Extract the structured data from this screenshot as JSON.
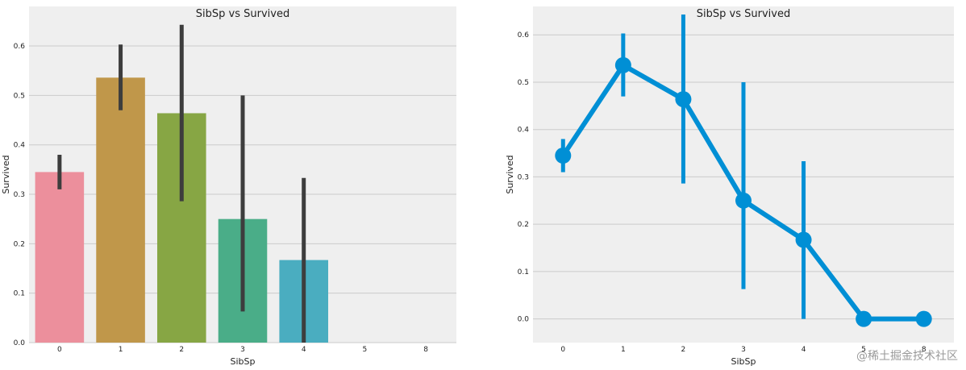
{
  "watermark": "@稀土掘金技术社区",
  "chart_data": [
    {
      "type": "bar",
      "title": "SibSp vs Survived",
      "xlabel": "SibSp",
      "ylabel": "Survived",
      "categories": [
        "0",
        "1",
        "2",
        "3",
        "4",
        "5",
        "8"
      ],
      "values": [
        0.345,
        0.536,
        0.464,
        0.25,
        0.167,
        0.0,
        0.0
      ],
      "ci_low": [
        0.31,
        0.47,
        0.286,
        0.063,
        0.0,
        0.0,
        0.0
      ],
      "ci_high": [
        0.38,
        0.603,
        0.643,
        0.5,
        0.333,
        0.0,
        0.0
      ],
      "colors": [
        "#ec8f9c",
        "#c0974a",
        "#87a644",
        "#4aad88",
        "#4aadc0",
        "#7aa3d4",
        "#c391d4"
      ],
      "errorbar_color": "#3d3d3d",
      "ylim": [
        0,
        0.68
      ],
      "yticks": [
        "0.0",
        "0.1",
        "0.2",
        "0.3",
        "0.4",
        "0.5",
        "0.6"
      ],
      "grid": true,
      "background": "#efefef"
    },
    {
      "type": "line",
      "title": "SibSp vs Survived",
      "xlabel": "SibSp",
      "ylabel": "Survived",
      "categories": [
        "0",
        "1",
        "2",
        "3",
        "4",
        "5",
        "8"
      ],
      "values": [
        0.345,
        0.536,
        0.464,
        0.25,
        0.167,
        0.0,
        0.0
      ],
      "ci_low": [
        0.31,
        0.47,
        0.286,
        0.063,
        0.0,
        0.0,
        0.0
      ],
      "ci_high": [
        0.38,
        0.603,
        0.643,
        0.5,
        0.333,
        0.0,
        0.0
      ],
      "color": "#008fd5",
      "ylim": [
        -0.05,
        0.66
      ],
      "yticks": [
        "0.0",
        "0.1",
        "0.2",
        "0.3",
        "0.4",
        "0.5",
        "0.6"
      ],
      "grid": true,
      "background": "#efefef"
    }
  ]
}
